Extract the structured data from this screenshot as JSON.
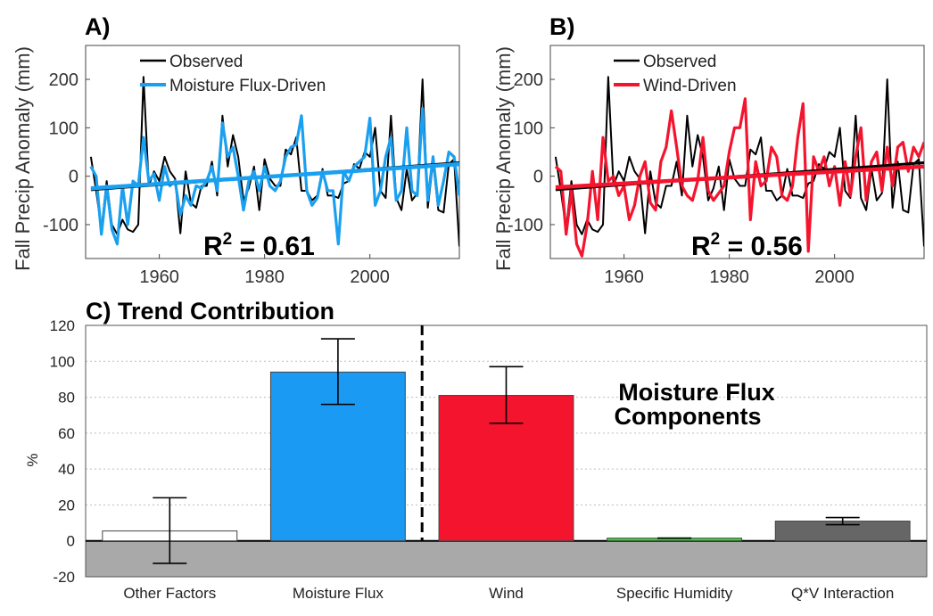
{
  "chart_data": [
    {
      "type": "line",
      "panel_label": "A)",
      "ylabel": "Fall Precip Anomaly (mm)",
      "xlim": [
        1946,
        2017
      ],
      "ylim": [
        -170,
        270
      ],
      "xticks": [
        1960,
        1980,
        2000
      ],
      "yticks": [
        -100,
        0,
        100,
        200
      ],
      "annotation": "R",
      "annotation_sup": "2",
      "annotation_value": " = 0.61",
      "legend_position": "top-center",
      "series": [
        {
          "name": "Observed",
          "color": "#000000",
          "x": [
            1947,
            1948,
            1949,
            1950,
            1951,
            1952,
            1953,
            1954,
            1955,
            1956,
            1957,
            1958,
            1959,
            1960,
            1961,
            1962,
            1963,
            1964,
            1965,
            1966,
            1967,
            1968,
            1969,
            1970,
            1971,
            1972,
            1973,
            1974,
            1975,
            1976,
            1977,
            1978,
            1979,
            1980,
            1981,
            1982,
            1983,
            1984,
            1985,
            1986,
            1987,
            1988,
            1989,
            1990,
            1991,
            1992,
            1993,
            1994,
            1995,
            1996,
            1997,
            1998,
            1999,
            2000,
            2001,
            2002,
            2003,
            2004,
            2005,
            2006,
            2007,
            2008,
            2009,
            2010,
            2011,
            2012,
            2013,
            2014,
            2015,
            2016,
            2017
          ],
          "y": [
            40,
            -30,
            -110,
            -10,
            -100,
            -120,
            -90,
            -110,
            -115,
            -100,
            205,
            -20,
            10,
            -10,
            40,
            10,
            -5,
            -118,
            10,
            -55,
            -65,
            -20,
            -20,
            30,
            -40,
            125,
            20,
            85,
            40,
            -50,
            -25,
            20,
            -70,
            35,
            -5,
            -20,
            -20,
            55,
            45,
            80,
            -30,
            -30,
            -50,
            -40,
            15,
            -40,
            -40,
            -45,
            -15,
            -10,
            25,
            15,
            50,
            40,
            100,
            -30,
            -45,
            125,
            -45,
            -70,
            15,
            -50,
            -35,
            200,
            -65,
            30,
            -70,
            -75,
            25,
            35,
            -145
          ]
        },
        {
          "name": "Moisture Flux-Driven",
          "color": "#1aa0f0",
          "x": [
            1947,
            1948,
            1949,
            1950,
            1951,
            1952,
            1953,
            1954,
            1955,
            1956,
            1957,
            1958,
            1959,
            1960,
            1961,
            1962,
            1963,
            1964,
            1965,
            1966,
            1967,
            1968,
            1969,
            1970,
            1971,
            1972,
            1973,
            1974,
            1975,
            1976,
            1977,
            1978,
            1979,
            1980,
            1981,
            1982,
            1983,
            1984,
            1985,
            1986,
            1987,
            1988,
            1989,
            1990,
            1991,
            1992,
            1993,
            1994,
            1995,
            1996,
            1997,
            1998,
            1999,
            2000,
            2001,
            2002,
            2003,
            2004,
            2005,
            2006,
            2007,
            2008,
            2009,
            2010,
            2011,
            2012,
            2013,
            2014,
            2015,
            2016,
            2017
          ],
          "y": [
            20,
            0,
            -120,
            -20,
            -110,
            -140,
            -20,
            -100,
            -10,
            -20,
            80,
            -10,
            5,
            -50,
            20,
            -20,
            -10,
            -80,
            -40,
            -60,
            -20,
            -25,
            -10,
            20,
            -30,
            110,
            40,
            60,
            0,
            -70,
            -10,
            10,
            -30,
            20,
            -20,
            -30,
            -10,
            40,
            60,
            65,
            125,
            -30,
            -60,
            -45,
            10,
            -30,
            -30,
            -140,
            10,
            -10,
            20,
            30,
            40,
            120,
            -60,
            -30,
            40,
            80,
            -50,
            -30,
            100,
            -30,
            -40,
            140,
            -50,
            40,
            -60,
            -10,
            50,
            40,
            -40
          ]
        }
      ],
      "trend_lines": [
        {
          "color": "#000000",
          "x": [
            1947,
            2017
          ],
          "y": [
            -28,
            28
          ]
        },
        {
          "color": "#1aa0f0",
          "x": [
            1947,
            2017
          ],
          "y": [
            -25,
            25
          ]
        }
      ]
    },
    {
      "type": "line",
      "panel_label": "B)",
      "ylabel": "Fall Precip Anomaly (mm)",
      "xlim": [
        1946,
        2017
      ],
      "ylim": [
        -170,
        270
      ],
      "xticks": [
        1960,
        1980,
        2000
      ],
      "yticks": [
        -100,
        0,
        100,
        200
      ],
      "annotation": "R",
      "annotation_sup": "2",
      "annotation_value": " = 0.56",
      "legend_position": "top-center",
      "series": [
        {
          "name": "Observed",
          "color": "#000000",
          "x": [
            1947,
            1948,
            1949,
            1950,
            1951,
            1952,
            1953,
            1954,
            1955,
            1956,
            1957,
            1958,
            1959,
            1960,
            1961,
            1962,
            1963,
            1964,
            1965,
            1966,
            1967,
            1968,
            1969,
            1970,
            1971,
            1972,
            1973,
            1974,
            1975,
            1976,
            1977,
            1978,
            1979,
            1980,
            1981,
            1982,
            1983,
            1984,
            1985,
            1986,
            1987,
            1988,
            1989,
            1990,
            1991,
            1992,
            1993,
            1994,
            1995,
            1996,
            1997,
            1998,
            1999,
            2000,
            2001,
            2002,
            2003,
            2004,
            2005,
            2006,
            2007,
            2008,
            2009,
            2010,
            2011,
            2012,
            2013,
            2014,
            2015,
            2016,
            2017
          ],
          "y": [
            40,
            -30,
            -110,
            -10,
            -100,
            -120,
            -90,
            -110,
            -115,
            -100,
            205,
            -20,
            10,
            -10,
            40,
            10,
            -5,
            -118,
            10,
            -55,
            -65,
            -20,
            -20,
            30,
            -40,
            125,
            20,
            85,
            40,
            -50,
            -25,
            20,
            -70,
            35,
            -5,
            -20,
            -20,
            55,
            45,
            80,
            -30,
            -30,
            -50,
            -40,
            15,
            -40,
            -40,
            -45,
            -15,
            -10,
            25,
            15,
            50,
            40,
            100,
            -30,
            -45,
            125,
            -45,
            -70,
            15,
            -50,
            -35,
            200,
            -65,
            30,
            -70,
            -75,
            25,
            35,
            -145
          ]
        },
        {
          "name": "Wind-Driven",
          "color": "#f5142d",
          "x": [
            1947,
            1948,
            1949,
            1950,
            1951,
            1952,
            1953,
            1954,
            1955,
            1956,
            1957,
            1958,
            1959,
            1960,
            1961,
            1962,
            1963,
            1964,
            1965,
            1966,
            1967,
            1968,
            1969,
            1970,
            1971,
            1972,
            1973,
            1974,
            1975,
            1976,
            1977,
            1978,
            1979,
            1980,
            1981,
            1982,
            1983,
            1984,
            1985,
            1986,
            1987,
            1988,
            1989,
            1990,
            1991,
            1992,
            1993,
            1994,
            1995,
            1996,
            1997,
            1998,
            1999,
            2000,
            2001,
            2002,
            2003,
            2004,
            2005,
            2006,
            2007,
            2008,
            2009,
            2010,
            2011,
            2012,
            2013,
            2014,
            2015,
            2016,
            2017
          ],
          "y": [
            20,
            10,
            -120,
            -30,
            -140,
            -165,
            -100,
            10,
            -90,
            80,
            -10,
            0,
            -40,
            -20,
            -90,
            -60,
            0,
            30,
            -55,
            -70,
            30,
            60,
            135,
            60,
            -20,
            -40,
            -50,
            -10,
            80,
            -30,
            -50,
            -35,
            -20,
            50,
            100,
            100,
            160,
            -90,
            30,
            -20,
            -10,
            60,
            40,
            -40,
            -50,
            -20,
            80,
            150,
            -155,
            40,
            10,
            40,
            -20,
            20,
            -60,
            30,
            -40,
            40,
            100,
            -50,
            30,
            50,
            -30,
            60,
            -20,
            60,
            70,
            10,
            60,
            40,
            70
          ]
        }
      ],
      "trend_lines": [
        {
          "color": "#000000",
          "x": [
            1947,
            2017
          ],
          "y": [
            -28,
            28
          ]
        },
        {
          "color": "#f5142d",
          "x": [
            1947,
            2017
          ],
          "y": [
            -23,
            20
          ]
        }
      ]
    },
    {
      "type": "bar",
      "title": "C) Trend Contribution",
      "ylabel": "%",
      "ylim": [
        -20,
        120
      ],
      "yticks": [
        -20,
        0,
        20,
        40,
        60,
        80,
        100,
        120
      ],
      "grid": true,
      "categories": [
        "Other Factors",
        "Moisture Flux",
        "Wind",
        "Specific Humidity",
        "Q*V Interaction"
      ],
      "values": [
        5.5,
        94,
        81,
        1.5,
        11
      ],
      "err_low": [
        -12.5,
        76,
        65.5,
        1.5,
        9
      ],
      "err_high": [
        24,
        112.5,
        97,
        1.5,
        13
      ],
      "colors": [
        "#ffffff",
        "#1a9af2",
        "#f5142d",
        "#2edb2e",
        "#666666"
      ],
      "negative_region_color": "#a9a9a9",
      "annotation": [
        "Moisture Flux",
        "Components"
      ]
    }
  ]
}
